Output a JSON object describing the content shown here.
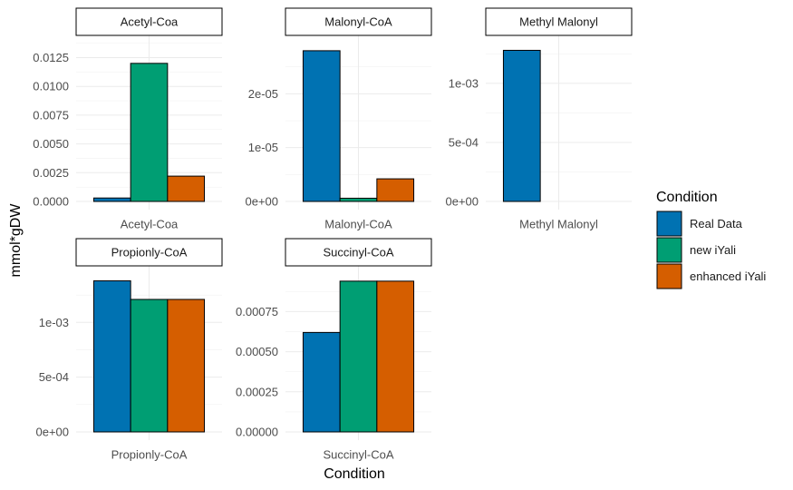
{
  "chart_data": {
    "type": "bar",
    "xlabel": "Condition",
    "ylabel": "mmol*gDW",
    "legend": {
      "title": "Condition",
      "placement": "right",
      "entries": [
        {
          "name": "Real Data",
          "color": "#0072B2"
        },
        {
          "name": "new iYali",
          "color": "#009E73"
        },
        {
          "name": "enhanced iYali",
          "color": "#D55E00"
        }
      ]
    },
    "grid": true,
    "panels": [
      {
        "strip": "Acetyl-Coa",
        "category": "Acetyl-Coa",
        "ylim": [
          0,
          0.0138
        ],
        "yticks": [
          0,
          0.0025,
          0.005,
          0.0075,
          0.01,
          0.0125
        ],
        "ytick_labels": [
          "0.0000",
          "0.0025",
          "0.0050",
          "0.0075",
          "0.0100",
          "0.0125"
        ],
        "values": [
          0.0003,
          0.012,
          0.0022
        ]
      },
      {
        "strip": "Malonyl-CoA",
        "category": "Malonyl-CoA",
        "ylim": [
          0,
          2.95e-05
        ],
        "yticks": [
          0,
          1e-05,
          2e-05
        ],
        "ytick_labels": [
          "0e+00",
          "1e-05",
          "2e-05"
        ],
        "values": [
          2.8e-05,
          6e-07,
          4.2e-06
        ]
      },
      {
        "strip": "Methyl Malonyl",
        "category": "Methyl Malonyl",
        "ylim": [
          0,
          0.001345
        ],
        "yticks": [
          0,
          0.0005,
          0.001
        ],
        "ytick_labels": [
          "0e+00",
          "5e-04",
          "1e-03"
        ],
        "values": [
          0.00128,
          0.0,
          0.0
        ]
      },
      {
        "strip": "Propionly-CoA",
        "category": "Propionly-CoA",
        "ylim": [
          0,
          0.00145
        ],
        "yticks": [
          0,
          0.0005,
          0.001
        ],
        "ytick_labels": [
          "0e+00",
          "5e-04",
          "1e-03"
        ],
        "values": [
          0.00138,
          0.00121,
          0.00121
        ]
      },
      {
        "strip": "Succinyl-CoA",
        "category": "Succinyl-CoA",
        "ylim": [
          0,
          0.00099
        ],
        "yticks": [
          0,
          0.00025,
          0.0005,
          0.00075
        ],
        "ytick_labels": [
          "0.00000",
          "0.00025",
          "0.00050",
          "0.00075"
        ],
        "values": [
          0.00062,
          0.00094,
          0.00094
        ]
      }
    ]
  }
}
